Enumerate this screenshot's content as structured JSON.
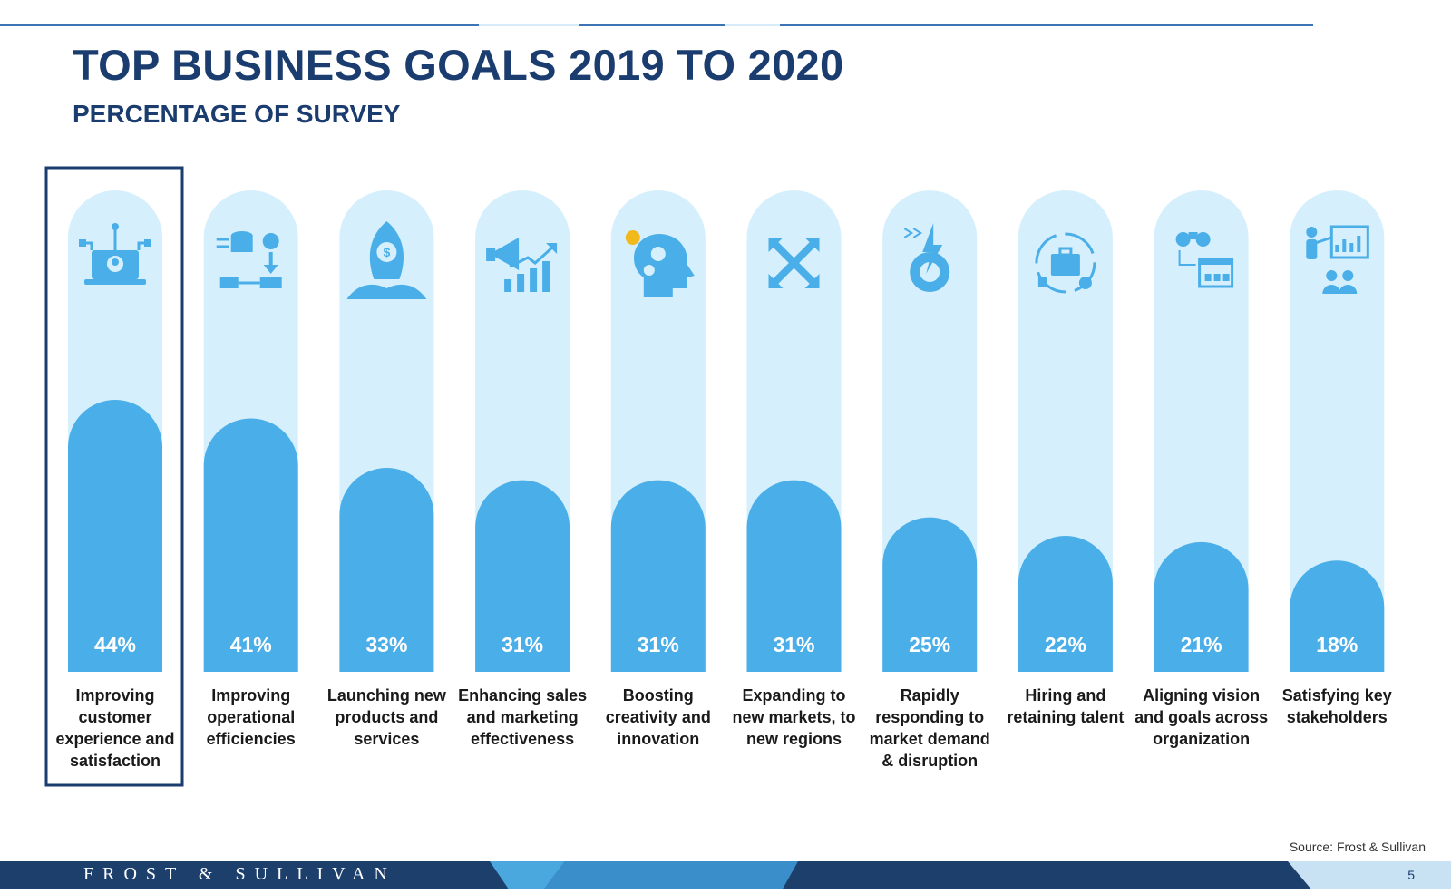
{
  "header": {
    "title": "TOP BUSINESS GOALS 2019 TO 2020",
    "subtitle": "PERCENTAGE OF SURVEY"
  },
  "chart_data": {
    "type": "bar",
    "title": "TOP BUSINESS GOALS 2019 TO 2020",
    "subtitle": "PERCENTAGE OF SURVEY",
    "categories": [
      "Improving customer experience and satisfaction",
      "Improving operational efficiencies",
      "Launching new products and services",
      "Enhancing sales and marketing effectiveness",
      "Boosting creativity and innovation",
      "Expanding to new markets, to new regions",
      "Rapidly responding to market demand & disruption",
      "Hiring and retaining talent",
      "Aligning vision and goals across organization",
      "Satisfying key stakeholders"
    ],
    "category_lines": [
      [
        "Improving",
        "customer",
        "experience and",
        "satisfaction"
      ],
      [
        "Improving",
        "operational",
        "efficiencies"
      ],
      [
        "Launching new",
        "products and",
        "services"
      ],
      [
        "Enhancing sales",
        "and marketing",
        "effectiveness"
      ],
      [
        "Boosting",
        "creativity and",
        "innovation"
      ],
      [
        "Expanding to",
        "new markets, to",
        "new regions"
      ],
      [
        "Rapidly",
        "responding to",
        "market demand",
        "& disruption"
      ],
      [
        "Hiring and",
        "retaining talent"
      ],
      [
        "Aligning vision",
        "and goals across",
        "organization"
      ],
      [
        "Satisfying key",
        "stakeholders"
      ]
    ],
    "values": [
      44,
      41,
      33,
      31,
      31,
      31,
      25,
      22,
      21,
      18
    ],
    "value_labels": [
      "44%",
      "41%",
      "33%",
      "31%",
      "31%",
      "31%",
      "25%",
      "22%",
      "21%",
      "18%"
    ],
    "icons": [
      "laptop-network-icon",
      "data-process-icon",
      "rocket-icon",
      "megaphone-growth-icon",
      "head-gears-icon",
      "expand-arrows-icon",
      "gear-lightning-icon",
      "briefcase-cycle-icon",
      "binoculars-dashboard-icon",
      "presentation-audience-icon"
    ],
    "highlighted_index": 0,
    "ylim": [
      0,
      100
    ],
    "colors": {
      "bar": "#4aaee8",
      "track": "#d6effc",
      "icon": "#4aaee8",
      "label": "#ffffff",
      "highlight": "#1a3c6e"
    }
  },
  "footer": {
    "brand": "FROST & SULLIVAN",
    "source": "Source: Frost & Sullivan",
    "page_number": "5"
  }
}
